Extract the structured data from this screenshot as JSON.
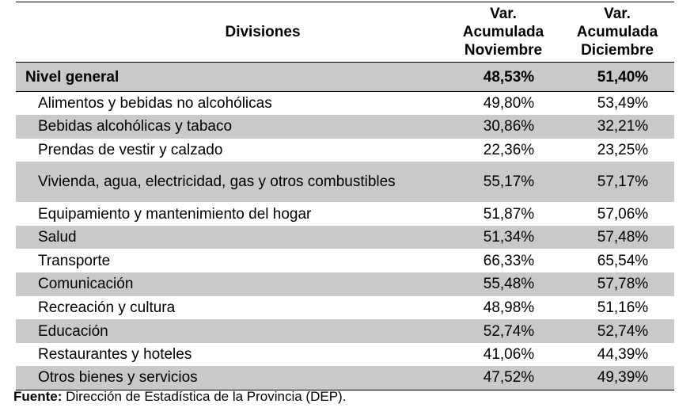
{
  "table": {
    "headers": {
      "divisions": "Divisiones",
      "col_nov": [
        "Var.",
        "Acumulada",
        "Noviembre"
      ],
      "col_dic": [
        "Var.",
        "Acumulada",
        "Diciembre"
      ]
    },
    "general": {
      "label": "Nivel general",
      "nov": "48,53%",
      "dic": "51,40%"
    },
    "rows": [
      {
        "label": "Alimentos y bebidas no alcohólicas",
        "nov": "49,80%",
        "dic": "53,49%"
      },
      {
        "label": "Bebidas alcohólicas y tabaco",
        "nov": "30,86%",
        "dic": "32,21%"
      },
      {
        "label": "Prendas de vestir y calzado",
        "nov": "22,36%",
        "dic": "23,25%"
      },
      {
        "label": "Vivienda, agua, electricidad, gas y otros combustibles",
        "nov": "55,17%",
        "dic": "57,17%"
      },
      {
        "label": "Equipamiento y mantenimiento del hogar",
        "nov": "51,87%",
        "dic": "57,06%"
      },
      {
        "label": "Salud",
        "nov": "51,34%",
        "dic": "57,48%"
      },
      {
        "label": "Transporte",
        "nov": "66,33%",
        "dic": "65,54%"
      },
      {
        "label": "Comunicación",
        "nov": "55,48%",
        "dic": "57,78%"
      },
      {
        "label": "Recreación y cultura",
        "nov": "48,98%",
        "dic": "51,16%"
      },
      {
        "label": "Educación",
        "nov": "52,74%",
        "dic": "52,74%"
      },
      {
        "label": "Restaurantes y hoteles",
        "nov": "41,06%",
        "dic": "44,39%"
      },
      {
        "label": "Otros bienes y servicios",
        "nov": "47,52%",
        "dic": "49,39%"
      }
    ]
  },
  "source": {
    "label": "Fuente:",
    "text": " Dirección de Estadística de la Provincia (DEP)."
  },
  "colors": {
    "shade": "#c9c9c9",
    "text": "#000000",
    "background": "#ffffff"
  }
}
